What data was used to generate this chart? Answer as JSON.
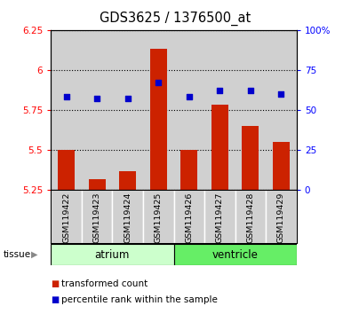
{
  "title": "GDS3625 / 1376500_at",
  "samples": [
    "GSM119422",
    "GSM119423",
    "GSM119424",
    "GSM119425",
    "GSM119426",
    "GSM119427",
    "GSM119428",
    "GSM119429"
  ],
  "bar_values": [
    5.5,
    5.32,
    5.37,
    6.13,
    5.5,
    5.78,
    5.65,
    5.55
  ],
  "dot_values": [
    5.83,
    5.82,
    5.82,
    5.92,
    5.83,
    5.87,
    5.87,
    5.85
  ],
  "bar_bottom": 5.25,
  "ylim_left": [
    5.25,
    6.25
  ],
  "ylim_right": [
    0,
    100
  ],
  "yticks_left": [
    5.25,
    5.5,
    5.75,
    6.0,
    6.25
  ],
  "yticks_right": [
    0,
    25,
    50,
    75,
    100
  ],
  "ytick_labels_left": [
    "5.25",
    "5.5",
    "5.75",
    "6",
    "6.25"
  ],
  "ytick_labels_right": [
    "0",
    "25",
    "50",
    "75",
    "100%"
  ],
  "groups": [
    {
      "name": "atrium",
      "indices": [
        0,
        1,
        2,
        3
      ],
      "color": "#ccffcc"
    },
    {
      "name": "ventricle",
      "indices": [
        4,
        5,
        6,
        7
      ],
      "color": "#66ee66"
    }
  ],
  "bar_color": "#cc2200",
  "dot_color": "#0000cc",
  "col_bg_color": "#d0d0d0",
  "tissue_label": "tissue",
  "legend_items": [
    {
      "label": "transformed count",
      "color": "#cc2200"
    },
    {
      "label": "percentile rank within the sample",
      "color": "#0000cc"
    }
  ]
}
